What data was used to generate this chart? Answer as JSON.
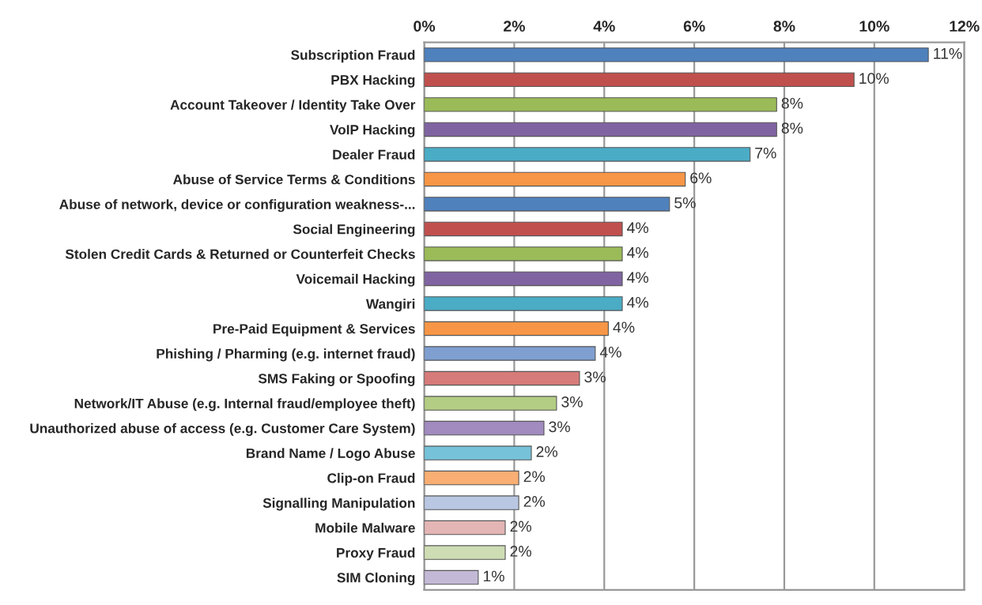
{
  "chart_data": {
    "type": "bar",
    "orientation": "horizontal",
    "categories": [
      "Subscription Fraud",
      "PBX Hacking",
      "Account Takeover / Identity Take Over",
      "VoIP Hacking",
      "Dealer Fraud",
      "Abuse of Service Terms & Conditions",
      "Abuse of network, device or configuration weakness-...",
      "Social Engineering",
      "Stolen Credit Cards & Returned or Counterfeit Checks",
      "Voicemail Hacking",
      "Wangiri",
      "Pre-Paid Equipment & Services",
      "Phishing / Pharming (e.g. internet fraud)",
      "SMS Faking or Spoofing",
      "Network/IT Abuse (e.g. Internal fraud/employee theft)",
      "Unauthorized abuse of access (e.g. Customer Care System)",
      "Brand Name / Logo Abuse",
      "Clip-on Fraud",
      "Signalling Manipulation",
      "Mobile Malware",
      "Proxy Fraud",
      "SIM Cloning"
    ],
    "values": [
      11.2,
      9.55,
      7.83,
      7.83,
      7.24,
      5.8,
      5.45,
      4.4,
      4.4,
      4.4,
      4.4,
      4.09,
      3.8,
      3.45,
      2.94,
      2.66,
      2.38,
      2.1,
      2.1,
      1.8,
      1.8,
      1.2
    ],
    "value_labels": [
      "11%",
      "10%",
      "8%",
      "8%",
      "7%",
      "6%",
      "5%",
      "4%",
      "4%",
      "4%",
      "4%",
      "4%",
      "4%",
      "3%",
      "3%",
      "3%",
      "2%",
      "2%",
      "2%",
      "2%",
      "2%",
      "1%"
    ],
    "colors": [
      "#4f81bd",
      "#c0504d",
      "#9bbb59",
      "#8064a2",
      "#4bacc6",
      "#f79646",
      "#4f81bd",
      "#c0504d",
      "#9bbb59",
      "#8064a2",
      "#4bacc6",
      "#f79646",
      "#7f9fd0",
      "#d67b79",
      "#b3cd84",
      "#a18bbf",
      "#76c2d8",
      "#f9ae73",
      "#b9c7e3",
      "#e3b5b4",
      "#cfddb4",
      "#c3b9d6"
    ],
    "xlim": [
      0,
      12
    ],
    "xticks": [
      {
        "value": 0,
        "label": "0%"
      },
      {
        "value": 2,
        "label": "2%"
      },
      {
        "value": 4,
        "label": "4%"
      },
      {
        "value": 6,
        "label": "6%"
      },
      {
        "value": 8,
        "label": "8%"
      },
      {
        "value": 10,
        "label": "10%"
      },
      {
        "value": 12,
        "label": "12%"
      }
    ],
    "grid": "x",
    "legend": false
  }
}
